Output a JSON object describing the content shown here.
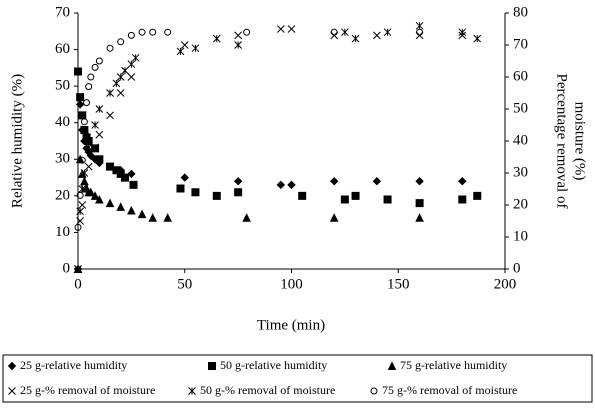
{
  "chart_data": {
    "type": "scatter",
    "x_label": "Time (min)",
    "y_label": "Relative humidity (%)",
    "y2_label": [
      "Percentage removal of",
      "moisture (%)"
    ],
    "xlim": [
      0,
      200
    ],
    "xticks": [
      0,
      50,
      100,
      150,
      200
    ],
    "ylim": [
      0,
      70
    ],
    "yticks": [
      0,
      10,
      20,
      30,
      40,
      50,
      60,
      70
    ],
    "y2lim": [
      0,
      80
    ],
    "y2ticks": [
      0,
      10,
      20,
      30,
      40,
      50,
      60,
      70,
      80
    ],
    "series": [
      {
        "name": "25 g-relative humidity",
        "color": "#000000",
        "marker": "diamond",
        "axis": "y",
        "x": [
          0,
          1,
          2,
          3,
          4,
          5,
          6,
          8,
          10,
          15,
          20,
          25,
          50,
          75,
          95,
          100,
          120,
          140,
          160,
          180
        ],
        "values": [
          0,
          45,
          38,
          35,
          33,
          32,
          31,
          30,
          29,
          28,
          27,
          26,
          25,
          24,
          23,
          23,
          24,
          24,
          24,
          24
        ]
      },
      {
        "name": "50 g-relative humidity",
        "color": "#000000",
        "marker": "square",
        "axis": "y",
        "x": [
          0,
          1,
          2,
          3,
          4,
          5,
          8,
          10,
          15,
          18,
          20,
          22,
          26,
          48,
          55,
          65,
          75,
          105,
          125,
          130,
          145,
          160,
          180,
          187
        ],
        "values": [
          54,
          47,
          42,
          38,
          36,
          35,
          33,
          30,
          28,
          27,
          26,
          25,
          23,
          22,
          21,
          20,
          21,
          20,
          19,
          20,
          19,
          18,
          19,
          20
        ]
      },
      {
        "name": "75 g-relative humidity",
        "color": "#000000",
        "marker": "triangle",
        "axis": "y",
        "x": [
          0,
          1,
          2,
          3,
          4,
          5,
          6,
          8,
          10,
          15,
          20,
          25,
          30,
          35,
          42,
          79,
          120,
          160
        ],
        "values": [
          0,
          30,
          26,
          24,
          22,
          21,
          21,
          20,
          19,
          18,
          17,
          16,
          15,
          14,
          14,
          14,
          14,
          14
        ]
      },
      {
        "name": "25 g-% removal of moisture",
        "color": "#000000",
        "marker": "x",
        "axis": "y2",
        "x": [
          0,
          1,
          2,
          3,
          5,
          8,
          10,
          15,
          20,
          25,
          50,
          75,
          95,
          100,
          120,
          140,
          160,
          180
        ],
        "values": [
          0,
          15,
          20,
          25,
          32,
          38,
          42,
          48,
          55,
          60,
          70,
          73,
          75,
          75,
          73,
          73,
          73,
          73
        ]
      },
      {
        "name": "50 g-% removal of moisture",
        "color": "#000000",
        "marker": "asterisk",
        "axis": "y2",
        "x": [
          0,
          1,
          2,
          3,
          5,
          8,
          10,
          15,
          18,
          20,
          22,
          25,
          27,
          48,
          55,
          65,
          75,
          125,
          130,
          145,
          160,
          180,
          187
        ],
        "values": [
          0,
          18,
          25,
          30,
          38,
          45,
          50,
          55,
          58,
          60,
          62,
          64,
          66,
          68,
          69,
          72,
          70,
          74,
          72,
          74,
          76,
          74,
          72
        ]
      },
      {
        "name": "75 g-% removal of moisture",
        "color": "#000000",
        "marker": "circle",
        "axis": "y2",
        "x": [
          0,
          1,
          2,
          3,
          4,
          5,
          6,
          8,
          10,
          15,
          20,
          25,
          30,
          35,
          42,
          79,
          120,
          160
        ],
        "values": [
          13,
          23,
          34,
          46,
          52,
          57,
          60,
          63,
          65,
          69,
          71,
          73,
          74,
          74,
          74,
          74,
          74,
          74
        ]
      }
    ]
  }
}
